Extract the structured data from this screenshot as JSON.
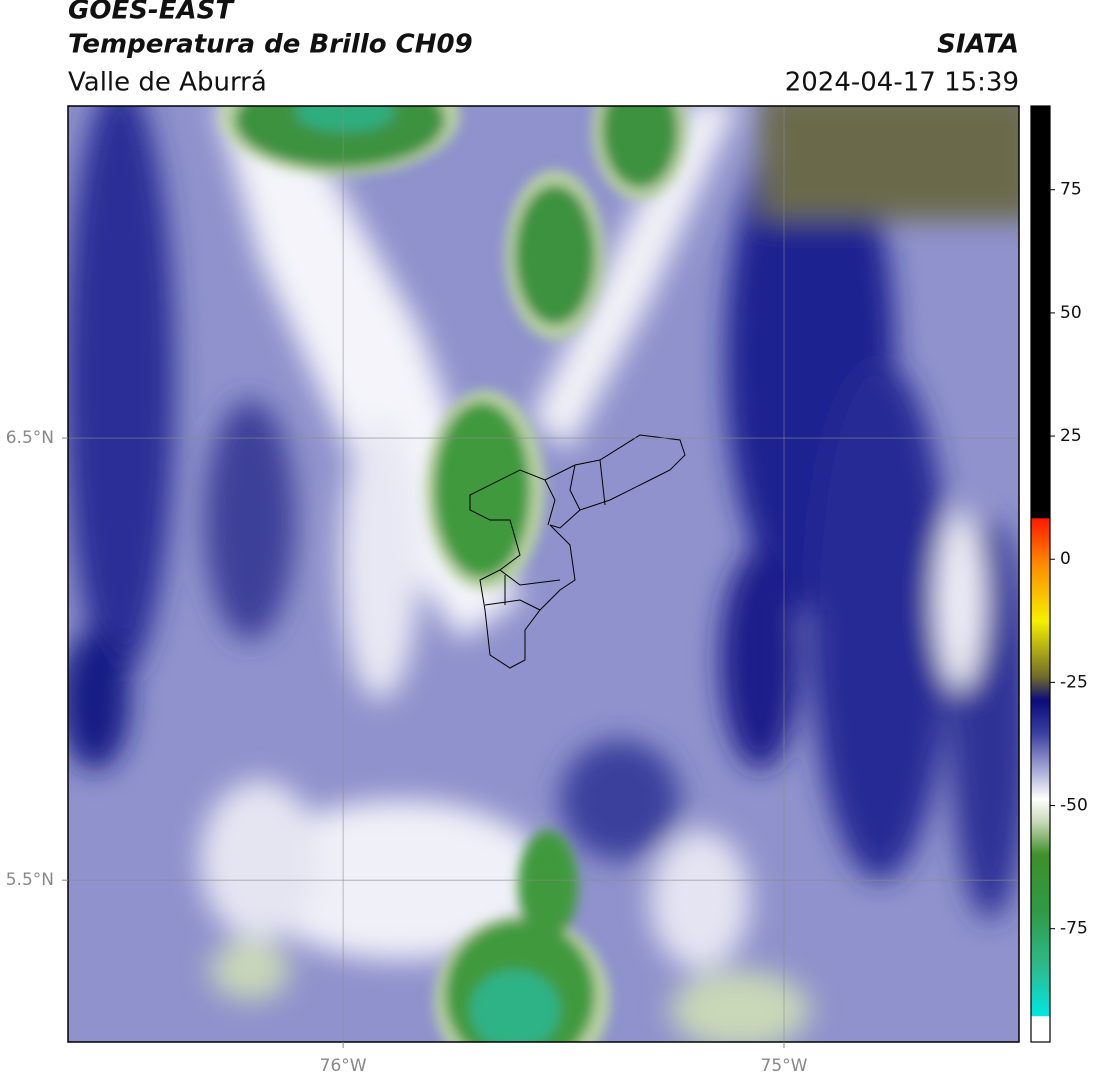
{
  "header": {
    "title": "GOES-EAST",
    "subtitle": "Temperatura de Brillo CH09",
    "source": "SIATA",
    "region": "Valle de Aburrá",
    "datetime": "2024-04-17 15:39"
  },
  "map": {
    "xlim": [
      -76.624,
      -74.467
    ],
    "ylim": [
      5.134,
      7.251
    ],
    "xticks": [
      {
        "value": -76,
        "label": "76°W"
      },
      {
        "value": -75,
        "label": "75°W"
      }
    ],
    "yticks": [
      {
        "value": 6.5,
        "label": "6.5°N"
      },
      {
        "value": 5.5,
        "label": "5.5°N"
      }
    ],
    "grid": true
  },
  "colorbar": {
    "lim": [
      -98,
      92
    ],
    "ticks": [
      75,
      50,
      25,
      0,
      -25,
      -50,
      -75
    ]
  }
}
